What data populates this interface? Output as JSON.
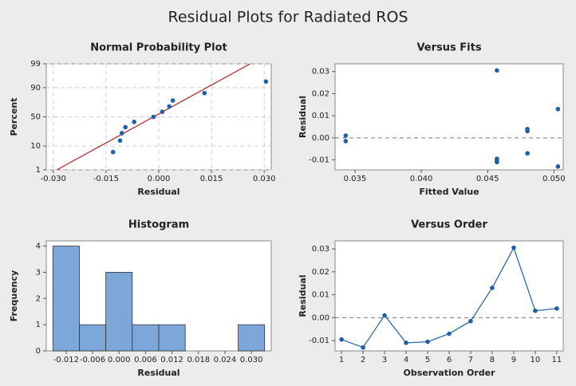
{
  "title": "Residual Plots for Radiated ROS",
  "chart_data": [
    {
      "type": "scatter",
      "title": "Normal Probability Plot",
      "x_label": "Residual",
      "y_label": "Percent",
      "x": [
        -0.013,
        -0.011,
        -0.0105,
        -0.0095,
        -0.007,
        -0.0015,
        0.001,
        0.003,
        0.004,
        0.013,
        0.0305
      ],
      "y": [
        6.1,
        14.9,
        23.7,
        32.5,
        41.2,
        50,
        58.8,
        67.5,
        76.3,
        85.1,
        93.9
      ],
      "color": "#1f5fa6",
      "fit_line": {
        "x": [
          -0.029,
          0.026
        ],
        "y": [
          1,
          99
        ],
        "color": "#b22222"
      },
      "xlim": [
        -0.032,
        0.032
      ],
      "xticks": [
        {
          "value": -0.03,
          "label": "-0.030"
        },
        -0.015,
        {
          "value": 0,
          "label": "0.000"
        },
        0.015,
        {
          "value": 0.03,
          "label": "0.030"
        }
      ],
      "ylim": [
        1,
        99
      ],
      "yscale": "probability",
      "yticks": [
        1,
        10,
        50,
        90,
        99
      ],
      "grid": true
    },
    {
      "type": "scatter",
      "title": "Versus Fits",
      "x_label": "Fitted Value",
      "y_label": "Residual",
      "x": [
        0.0343,
        0.0343,
        0.0457,
        0.0457,
        0.0457,
        0.0457,
        0.048,
        0.048,
        0.048,
        0.0503,
        0.0503
      ],
      "y": [
        0.001,
        -0.0015,
        0.0305,
        -0.0095,
        -0.0105,
        -0.011,
        0.004,
        0.003,
        -0.007,
        0.013,
        -0.013
      ],
      "color": "#1f5fa6",
      "hline": 0,
      "xlim": [
        0.0335,
        0.0507
      ],
      "xticks": [
        0.035,
        {
          "value": 0.04,
          "label": "0.040"
        },
        0.045,
        {
          "value": 0.05,
          "label": "0.050"
        }
      ],
      "ylim": [
        -0.0145,
        0.0335
      ],
      "yticks": [
        -0.01,
        {
          "value": 0,
          "label": "0.00"
        },
        0.01,
        0.02,
        0.03
      ],
      "grid": false
    },
    {
      "type": "histogram",
      "title": "Histogram",
      "x_label": "Residual",
      "y_label": "Frequency",
      "bins": [
        -0.015,
        -0.009,
        -0.003,
        0.003,
        0.009,
        0.015,
        0.021,
        0.027,
        0.033
      ],
      "counts": [
        4,
        1,
        3,
        1,
        1,
        0,
        0,
        1
      ],
      "color": "#7da7d9",
      "xlim": [
        -0.0165,
        0.0345
      ],
      "xticks": [
        -0.012,
        -0.006,
        {
          "value": 0,
          "label": "0.000"
        },
        0.006,
        0.012,
        0.018,
        0.024,
        {
          "value": 0.03,
          "label": "0.030"
        }
      ],
      "ylim": [
        0,
        4.2
      ],
      "yticks": [
        0,
        1,
        2,
        3,
        4
      ],
      "grid": false
    },
    {
      "type": "line",
      "title": "Versus Order",
      "x_label": "Observation Order",
      "y_label": "Residual",
      "x": [
        1,
        2,
        3,
        4,
        5,
        6,
        7,
        8,
        9,
        10,
        11
      ],
      "y": [
        -0.0095,
        -0.013,
        0.001,
        -0.011,
        -0.0105,
        -0.007,
        -0.0015,
        0.013,
        0.0305,
        0.003,
        0.004
      ],
      "color": "#1f5fa6",
      "hline": 0,
      "xlim": [
        0.7,
        11.3
      ],
      "xticks": [
        1,
        2,
        3,
        4,
        5,
        6,
        7,
        8,
        9,
        10,
        11
      ],
      "ylim": [
        -0.0145,
        0.0335
      ],
      "yticks": [
        -0.01,
        {
          "value": 0,
          "label": "0.00"
        },
        0.01,
        0.02,
        0.03
      ],
      "grid": false
    }
  ]
}
